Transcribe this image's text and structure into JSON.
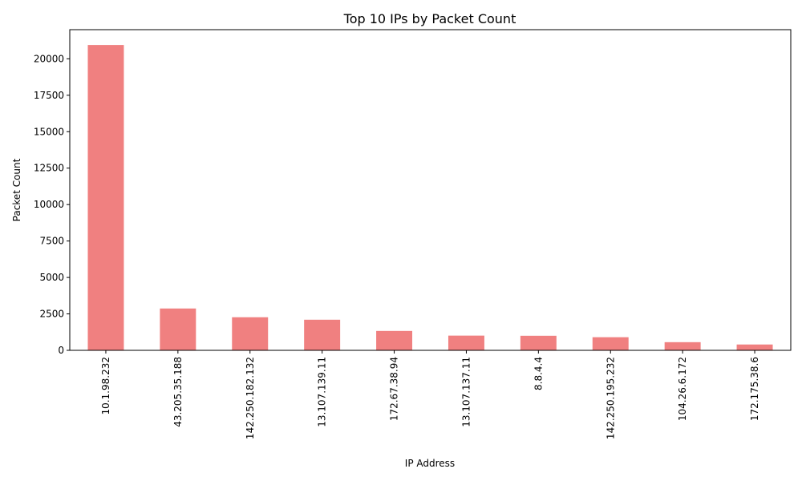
{
  "chart_data": {
    "type": "bar",
    "title": "Top 10 IPs by Packet Count",
    "xlabel": "IP Address",
    "ylabel": "Packet Count",
    "categories": [
      "10.1.98.232",
      "43.205.35.188",
      "142.250.182.132",
      "13.107.139.11",
      "172.67.38.94",
      "13.107.137.11",
      "8.8.4.4",
      "142.250.195.232",
      "104.26.6.172",
      "172.175.38.6"
    ],
    "values": [
      20950,
      2870,
      2270,
      2100,
      1330,
      1010,
      1000,
      900,
      560,
      400
    ],
    "ylim": [
      0,
      22000
    ],
    "yticks": [
      0,
      2500,
      5000,
      7500,
      10000,
      12500,
      15000,
      17500,
      20000
    ],
    "grid": false,
    "legend": "none",
    "bar_color": "#F08080"
  }
}
